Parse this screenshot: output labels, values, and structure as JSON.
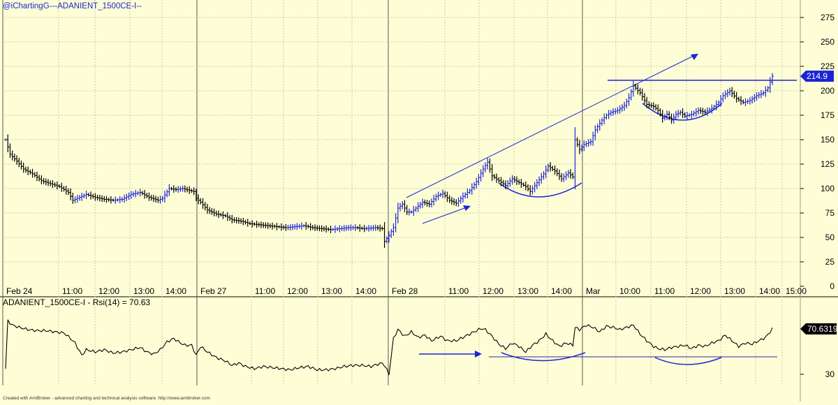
{
  "header": {
    "title": "@iChartingG---ADANIENT_1500CE-I--"
  },
  "footer": {
    "credit": "Created with AmiBroker - advanced charting and technical analysis software. http://www.amibroker.com"
  },
  "colors": {
    "background": "#fefed6",
    "grid": "#c8c8a8",
    "price": "#000000",
    "annotation": "#1c24d6",
    "last_price_label_bg": "#1c24d6",
    "rsi_line": "#000000",
    "rsi_ref_line": "#3a1fa0"
  },
  "chart_data": [
    {
      "type": "ohlc",
      "title": "@iChartingG---ADANIENT_1500CE-I--",
      "yaxis_ticks": [
        0,
        25,
        50,
        75,
        100,
        125,
        150,
        175,
        200,
        225,
        250,
        275
      ],
      "ylim": [
        0,
        285
      ],
      "x_tick_labels": [
        "Feb 24",
        "11:00",
        "12:00",
        "13:00",
        "14:00",
        "Feb 27",
        "11:00",
        "12:00",
        "13:00",
        "14:00",
        "Feb 28",
        "11:00",
        "12:00",
        "13:00",
        "14:00",
        "Mar",
        "10:00",
        "11:00",
        "12:00",
        "13:00",
        "14:00",
        "15:00"
      ],
      "last_price": "214.9",
      "close_path": [
        [
          0,
          150
        ],
        [
          2,
          135
        ],
        [
          5,
          128
        ],
        [
          8,
          120
        ],
        [
          12,
          115
        ],
        [
          16,
          108
        ],
        [
          20,
          105
        ],
        [
          24,
          102
        ],
        [
          28,
          96
        ],
        [
          30,
          88
        ],
        [
          33,
          91
        ],
        [
          36,
          94
        ],
        [
          40,
          91
        ],
        [
          44,
          89
        ],
        [
          48,
          88
        ],
        [
          52,
          89
        ],
        [
          56,
          94
        ],
        [
          60,
          96
        ],
        [
          64,
          91
        ],
        [
          68,
          88
        ],
        [
          70,
          90
        ],
        [
          73,
          100
        ],
        [
          76,
          99
        ],
        [
          79,
          100
        ],
        [
          82,
          98
        ],
        [
          84,
          97
        ],
        [
          85,
          90
        ],
        [
          87,
          86
        ],
        [
          90,
          78
        ],
        [
          94,
          74
        ],
        [
          98,
          72
        ],
        [
          101,
          68
        ],
        [
          104,
          67
        ],
        [
          106,
          66
        ],
        [
          109,
          64
        ],
        [
          113,
          63
        ],
        [
          117,
          62
        ],
        [
          121,
          61
        ],
        [
          125,
          60
        ],
        [
          129,
          61
        ],
        [
          133,
          62
        ],
        [
          137,
          60
        ],
        [
          141,
          59
        ],
        [
          145,
          58
        ],
        [
          149,
          59
        ],
        [
          153,
          60
        ],
        [
          156,
          60
        ],
        [
          160,
          59
        ],
        [
          165,
          60
        ],
        [
          168,
          59
        ],
        [
          169,
          46
        ],
        [
          171,
          52
        ],
        [
          173,
          60
        ],
        [
          175,
          80
        ],
        [
          177,
          84
        ],
        [
          179,
          76
        ],
        [
          181,
          76
        ],
        [
          183,
          80
        ],
        [
          186,
          86
        ],
        [
          189,
          84
        ],
        [
          192,
          92
        ],
        [
          195,
          95
        ],
        [
          198,
          88
        ],
        [
          201,
          85
        ],
        [
          204,
          92
        ],
        [
          207,
          98
        ],
        [
          210,
          107
        ],
        [
          213,
          120
        ],
        [
          215,
          127
        ],
        [
          217,
          113
        ],
        [
          220,
          108
        ],
        [
          223,
          103
        ],
        [
          226,
          110
        ],
        [
          229,
          106
        ],
        [
          232,
          102
        ],
        [
          234,
          97
        ],
        [
          237,
          106
        ],
        [
          240,
          115
        ],
        [
          242,
          123
        ],
        [
          245,
          118
        ],
        [
          248,
          110
        ],
        [
          251,
          116
        ],
        [
          253,
          112
        ],
        [
          254,
          150
        ],
        [
          256,
          140
        ],
        [
          258,
          145
        ],
        [
          261,
          148
        ],
        [
          263,
          160
        ],
        [
          266,
          170
        ],
        [
          268,
          175
        ],
        [
          270,
          178
        ],
        [
          273,
          180
        ],
        [
          276,
          185
        ],
        [
          278,
          193
        ],
        [
          280,
          205
        ],
        [
          283,
          198
        ],
        [
          286,
          186
        ],
        [
          289,
          184
        ],
        [
          291,
          180
        ],
        [
          293,
          172
        ],
        [
          295,
          176
        ],
        [
          297,
          170
        ],
        [
          299,
          176
        ],
        [
          301,
          178
        ],
        [
          303,
          174
        ],
        [
          306,
          176
        ],
        [
          309,
          180
        ],
        [
          312,
          178
        ],
        [
          315,
          182
        ],
        [
          318,
          188
        ],
        [
          320,
          195
        ],
        [
          323,
          200
        ],
        [
          326,
          192
        ],
        [
          329,
          188
        ],
        [
          332,
          190
        ],
        [
          335,
          195
        ],
        [
          338,
          198
        ],
        [
          340,
          203
        ],
        [
          342,
          214.9
        ]
      ]
    },
    {
      "type": "line",
      "title": "ADANIENT_1500CE-I - Rsi(14) = 70.63",
      "series": [
        {
          "name": "Rsi(14)"
        }
      ],
      "yaxis_ticks": [
        30
      ],
      "ylim": [
        25,
        85
      ],
      "last_value": "70.6319",
      "values_path": [
        [
          0,
          35
        ],
        [
          1,
          78
        ],
        [
          3,
          74
        ],
        [
          6,
          72
        ],
        [
          10,
          70
        ],
        [
          14,
          69
        ],
        [
          18,
          69
        ],
        [
          22,
          68
        ],
        [
          26,
          67
        ],
        [
          29,
          62
        ],
        [
          31,
          58
        ],
        [
          34,
          47
        ],
        [
          36,
          52
        ],
        [
          40,
          50
        ],
        [
          44,
          52
        ],
        [
          48,
          49
        ],
        [
          52,
          50
        ],
        [
          56,
          52
        ],
        [
          60,
          54
        ],
        [
          63,
          50
        ],
        [
          66,
          48
        ],
        [
          69,
          52
        ],
        [
          72,
          59
        ],
        [
          75,
          62
        ],
        [
          78,
          58
        ],
        [
          80,
          56
        ],
        [
          83,
          56
        ],
        [
          85,
          47
        ],
        [
          87,
          55
        ],
        [
          90,
          50
        ],
        [
          94,
          45
        ],
        [
          98,
          42
        ],
        [
          101,
          38
        ],
        [
          104,
          40
        ],
        [
          107,
          37
        ],
        [
          111,
          35
        ],
        [
          115,
          37
        ],
        [
          119,
          36
        ],
        [
          123,
          35
        ],
        [
          127,
          34
        ],
        [
          131,
          36
        ],
        [
          135,
          37
        ],
        [
          139,
          34
        ],
        [
          143,
          34
        ],
        [
          147,
          35
        ],
        [
          151,
          37
        ],
        [
          155,
          38
        ],
        [
          159,
          38
        ],
        [
          163,
          37
        ],
        [
          166,
          39
        ],
        [
          168,
          40
        ],
        [
          169,
          38
        ],
        [
          171,
          30
        ],
        [
          173,
          62
        ],
        [
          175,
          70
        ],
        [
          178,
          64
        ],
        [
          181,
          68
        ],
        [
          184,
          63
        ],
        [
          187,
          65
        ],
        [
          190,
          60
        ],
        [
          194,
          64
        ],
        [
          197,
          60
        ],
        [
          201,
          60
        ],
        [
          205,
          64
        ],
        [
          209,
          68
        ],
        [
          212,
          71
        ],
        [
          214,
          70
        ],
        [
          217,
          64
        ],
        [
          220,
          57
        ],
        [
          223,
          53
        ],
        [
          226,
          58
        ],
        [
          229,
          55
        ],
        [
          232,
          50
        ],
        [
          235,
          56
        ],
        [
          238,
          60
        ],
        [
          241,
          66
        ],
        [
          244,
          60
        ],
        [
          247,
          55
        ],
        [
          250,
          58
        ],
        [
          253,
          56
        ],
        [
          254,
          72
        ],
        [
          256,
          70
        ],
        [
          259,
          74
        ],
        [
          262,
          72
        ],
        [
          265,
          68
        ],
        [
          268,
          73
        ],
        [
          271,
          72
        ],
        [
          274,
          70
        ],
        [
          277,
          72
        ],
        [
          280,
          74
        ],
        [
          283,
          66
        ],
        [
          286,
          60
        ],
        [
          289,
          55
        ],
        [
          291,
          53
        ],
        [
          294,
          52
        ],
        [
          297,
          54
        ],
        [
          300,
          55
        ],
        [
          303,
          56
        ],
        [
          306,
          53
        ],
        [
          309,
          56
        ],
        [
          312,
          55
        ],
        [
          315,
          58
        ],
        [
          318,
          60
        ],
        [
          321,
          65
        ],
        [
          324,
          60
        ],
        [
          327,
          55
        ],
        [
          330,
          58
        ],
        [
          333,
          57
        ],
        [
          336,
          60
        ],
        [
          339,
          63
        ],
        [
          342,
          70.63
        ]
      ]
    }
  ]
}
